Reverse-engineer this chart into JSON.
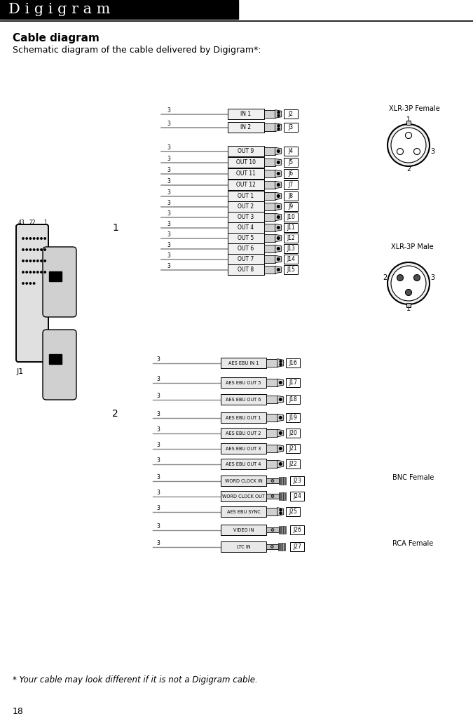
{
  "title": "D i g i g r a m",
  "section_title": "Cable diagram",
  "subtitle": "Schematic diagram of the cable delivered by Digigram*:",
  "footnote": "* Your cable may look different if it is not a Digigram cable.",
  "page_number": "18",
  "bg_color": "#ffffff",
  "header_bg": "#000000",
  "header_text_color": "#ffffff",
  "group1_connectors": [
    {
      "label": "IN 1",
      "jlabel": "J2",
      "type": "xlr_female"
    },
    {
      "label": "IN 2",
      "jlabel": "J3",
      "type": "xlr_female"
    },
    {
      "label": "OUT 9",
      "jlabel": "J4",
      "type": "xlr_male"
    },
    {
      "label": "OUT 10",
      "jlabel": "J5",
      "type": "xlr_male"
    },
    {
      "label": "OUT 11",
      "jlabel": "J6",
      "type": "xlr_male"
    },
    {
      "label": "OUT 12",
      "jlabel": "J7",
      "type": "xlr_male"
    },
    {
      "label": "OUT 1",
      "jlabel": "J8",
      "type": "xlr_male"
    },
    {
      "label": "OUT 2",
      "jlabel": "J9",
      "type": "xlr_male"
    },
    {
      "label": "OUT 3",
      "jlabel": "J10",
      "type": "xlr_male"
    },
    {
      "label": "OUT 4",
      "jlabel": "J11",
      "type": "xlr_male"
    },
    {
      "label": "OUT 5",
      "jlabel": "J12",
      "type": "xlr_male"
    },
    {
      "label": "OUT 6",
      "jlabel": "J13",
      "type": "xlr_male"
    },
    {
      "label": "OUT 7",
      "jlabel": "J14",
      "type": "xlr_male"
    },
    {
      "label": "OUT 8",
      "jlabel": "J15",
      "type": "xlr_male"
    }
  ],
  "group2_connectors": [
    {
      "label": "AES EBU IN 1",
      "jlabel": "J16",
      "type": "xlr_female"
    },
    {
      "label": "AES EBU OUT 5",
      "jlabel": "J17",
      "type": "xlr_male"
    },
    {
      "label": "AES EBU OUT 6",
      "jlabel": "J18",
      "type": "xlr_male"
    },
    {
      "label": "AES EBU OUT 1",
      "jlabel": "J19",
      "type": "xlr_male"
    },
    {
      "label": "AES EBU OUT 2",
      "jlabel": "J20",
      "type": "xlr_male"
    },
    {
      "label": "AES EBU OUT 3",
      "jlabel": "J21",
      "type": "xlr_male"
    },
    {
      "label": "AES EBU OUT 4",
      "jlabel": "J22",
      "type": "xlr_male"
    },
    {
      "label": "WORD CLOCK IN",
      "jlabel": "J23",
      "type": "bnc"
    },
    {
      "label": "WORD CLOCK OUT",
      "jlabel": "J24",
      "type": "bnc"
    },
    {
      "label": "AES EBU SYNC",
      "jlabel": "J25",
      "type": "xlr_female"
    },
    {
      "label": "VIDEO IN",
      "jlabel": "J26",
      "type": "bnc"
    },
    {
      "label": "LTC IN",
      "jlabel": "J27",
      "type": "rca"
    }
  ],
  "xlr_female_label": "XLR-3P Female",
  "xlr_male_label": "XLR-3P Male",
  "bnc_label": "BNC Female",
  "rca_label": "RCA Female",
  "label1": "1",
  "label2": "2",
  "j1_label": "J1",
  "j1_pins": [
    "43",
    "22",
    "1"
  ],
  "line_color": "#888888",
  "box_fc": "#f0f0f0",
  "box_ec": "#000000",
  "plug_fc": "#d0d0d0",
  "bnc_fc": "#c0c0c0"
}
